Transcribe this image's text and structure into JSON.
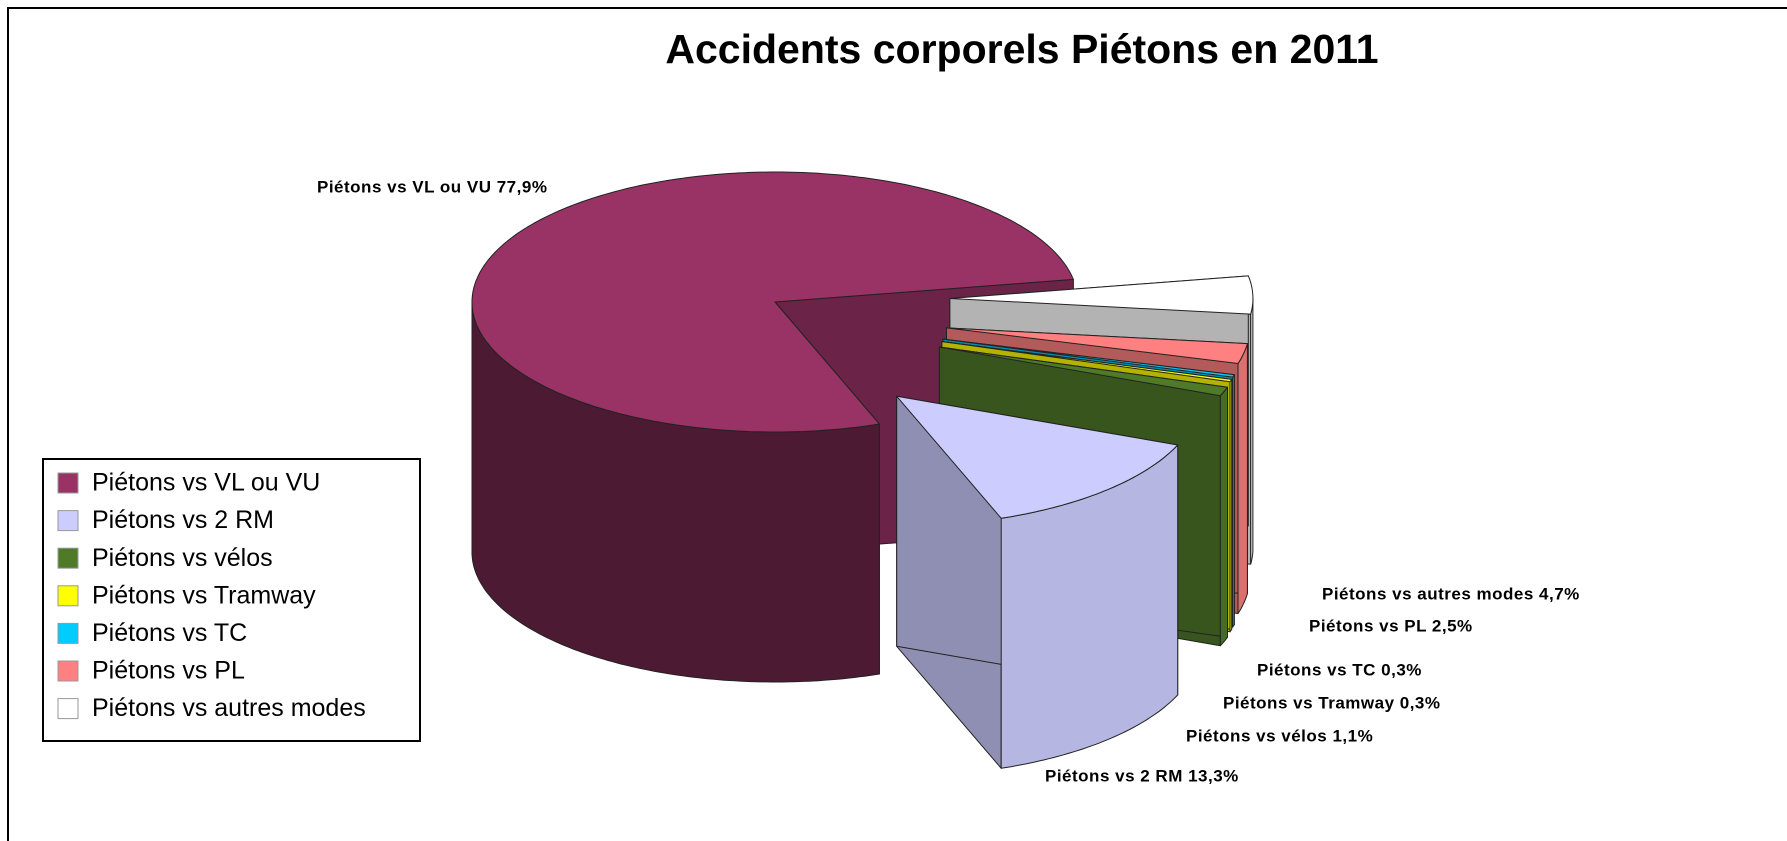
{
  "chart_data": {
    "type": "pie3d",
    "title": "Accidents corporels Piétons en 2011",
    "categories": [
      "Piétons vs VL ou VU",
      "Piétons vs 2 RM",
      "Piétons vs vélos",
      "Piétons vs Tramway",
      "Piétons vs TC",
      "Piétons vs PL",
      "Piétons vs autres modes"
    ],
    "values": [
      77.9,
      13.3,
      1.1,
      0.3,
      0.3,
      2.5,
      4.7
    ],
    "value_labels": [
      "Piétons vs VL ou VU 77,9%",
      "Piétons vs 2 RM 13,3%",
      "Piétons vs vélos 1,1%",
      "Piétons vs Tramway 0,3%",
      "Piétons vs TC 0,3%",
      "Piétons vs PL 2,5%",
      "Piétons vs autres modes 4,7%"
    ],
    "colors": [
      "#993366",
      "#ccccff",
      "#4f7a28",
      "#ffff00",
      "#00ccff",
      "#ff8080",
      "#ffffff"
    ],
    "legend": "left"
  }
}
